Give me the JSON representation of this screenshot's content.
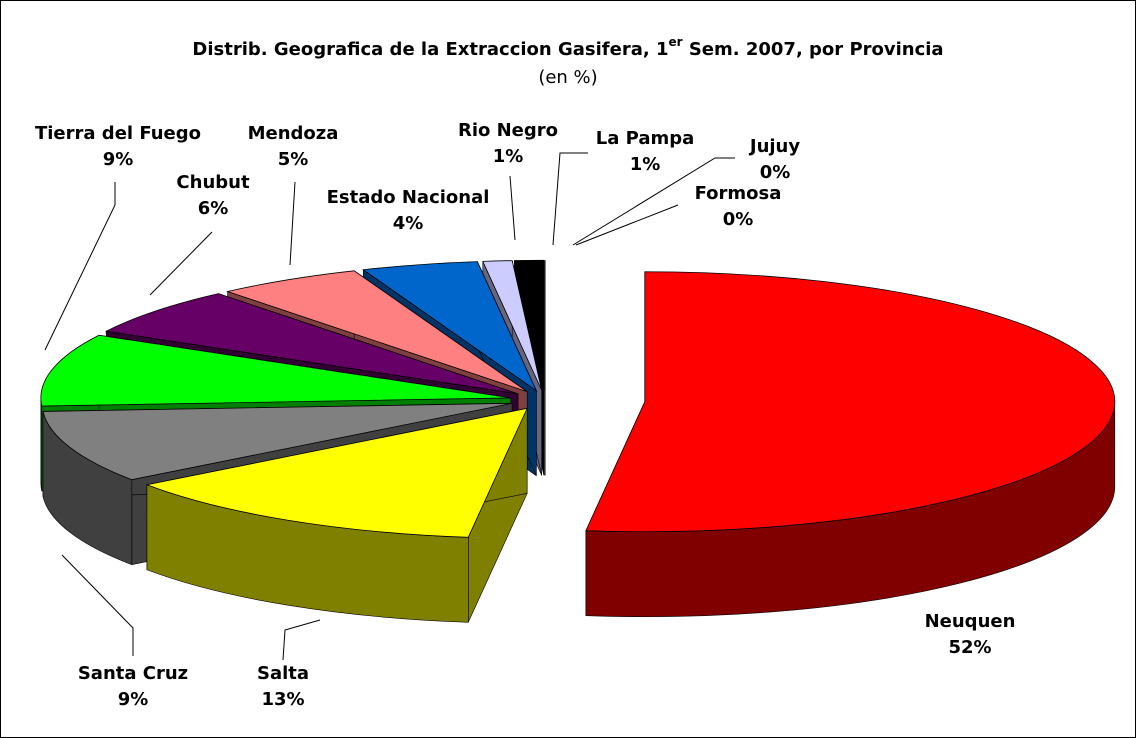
{
  "chart_data": {
    "type": "pie3d",
    "title": [
      "Distrib. Geografica de la Extraccion Gasifera, 1",
      "er",
      " Sem. 2007, por Provincia"
    ],
    "subtitle": "(en %)",
    "categories": [
      "Neuquen",
      "Salta",
      "Santa Cruz",
      "Tierra del Fuego",
      "Chubut",
      "Mendoza",
      "Estado Nacional",
      "Rio Negro",
      "La Pampa",
      "Jujuy",
      "Formosa"
    ],
    "values": [
      52,
      13,
      9,
      9,
      6,
      5,
      4,
      1,
      1,
      0,
      0
    ],
    "value_labels": [
      "52%",
      "13%",
      "9%",
      "9%",
      "6%",
      "5%",
      "4%",
      "1%",
      "1%",
      "0%",
      "0%"
    ],
    "colors": [
      "#ff0000",
      "#ffff00",
      "#808080",
      "#00ff00",
      "#660066",
      "#ff8080",
      "#0066cc",
      "#ccccff",
      "#000000",
      "#333333",
      "#666666"
    ]
  }
}
